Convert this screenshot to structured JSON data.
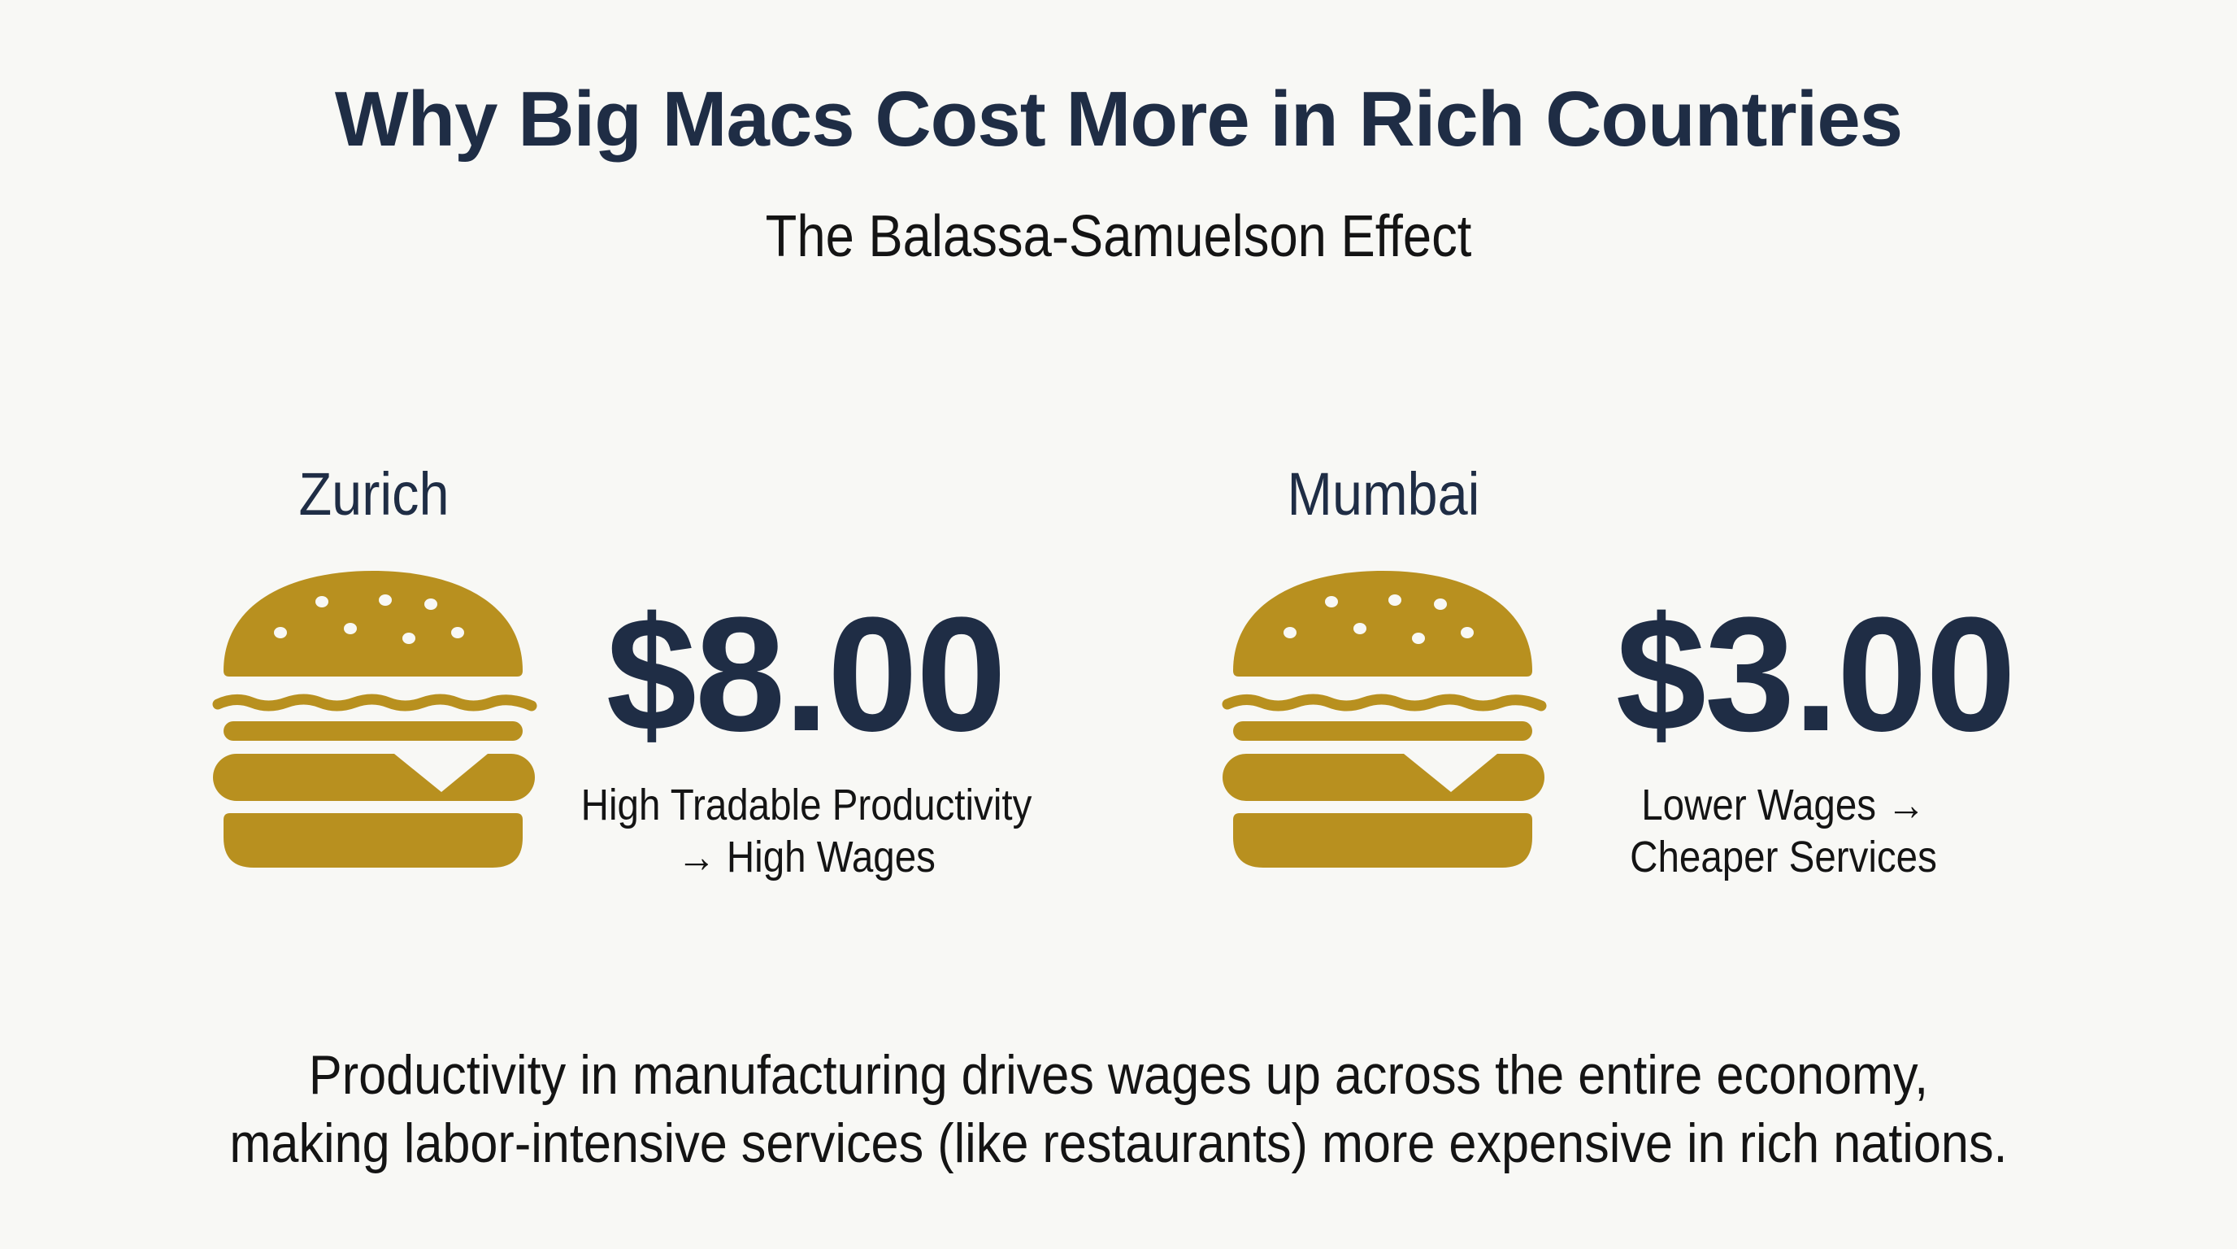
{
  "title": "Why Big Macs Cost More in Rich Countries",
  "subtitle": "The Balassa-Samuelson Effect",
  "colors": {
    "burger": "#B8901F",
    "text_primary": "#1F2D45",
    "background": "#F8F8F5"
  },
  "cities": [
    {
      "name": "Zurich",
      "price": "$8.00",
      "caption_line1": "High Tradable Productivity",
      "caption_line2": "→ High Wages",
      "icon": "burger-icon"
    },
    {
      "name": "Mumbai",
      "price": "$3.00",
      "caption_line1": "Lower Wages →",
      "caption_line2": "Cheaper Services",
      "icon": "burger-icon"
    }
  ],
  "footer": {
    "line1": "Productivity in manufacturing drives wages up across the entire economy,",
    "line2": "making labor-intensive services (like restaurants) more expensive in rich nations."
  }
}
